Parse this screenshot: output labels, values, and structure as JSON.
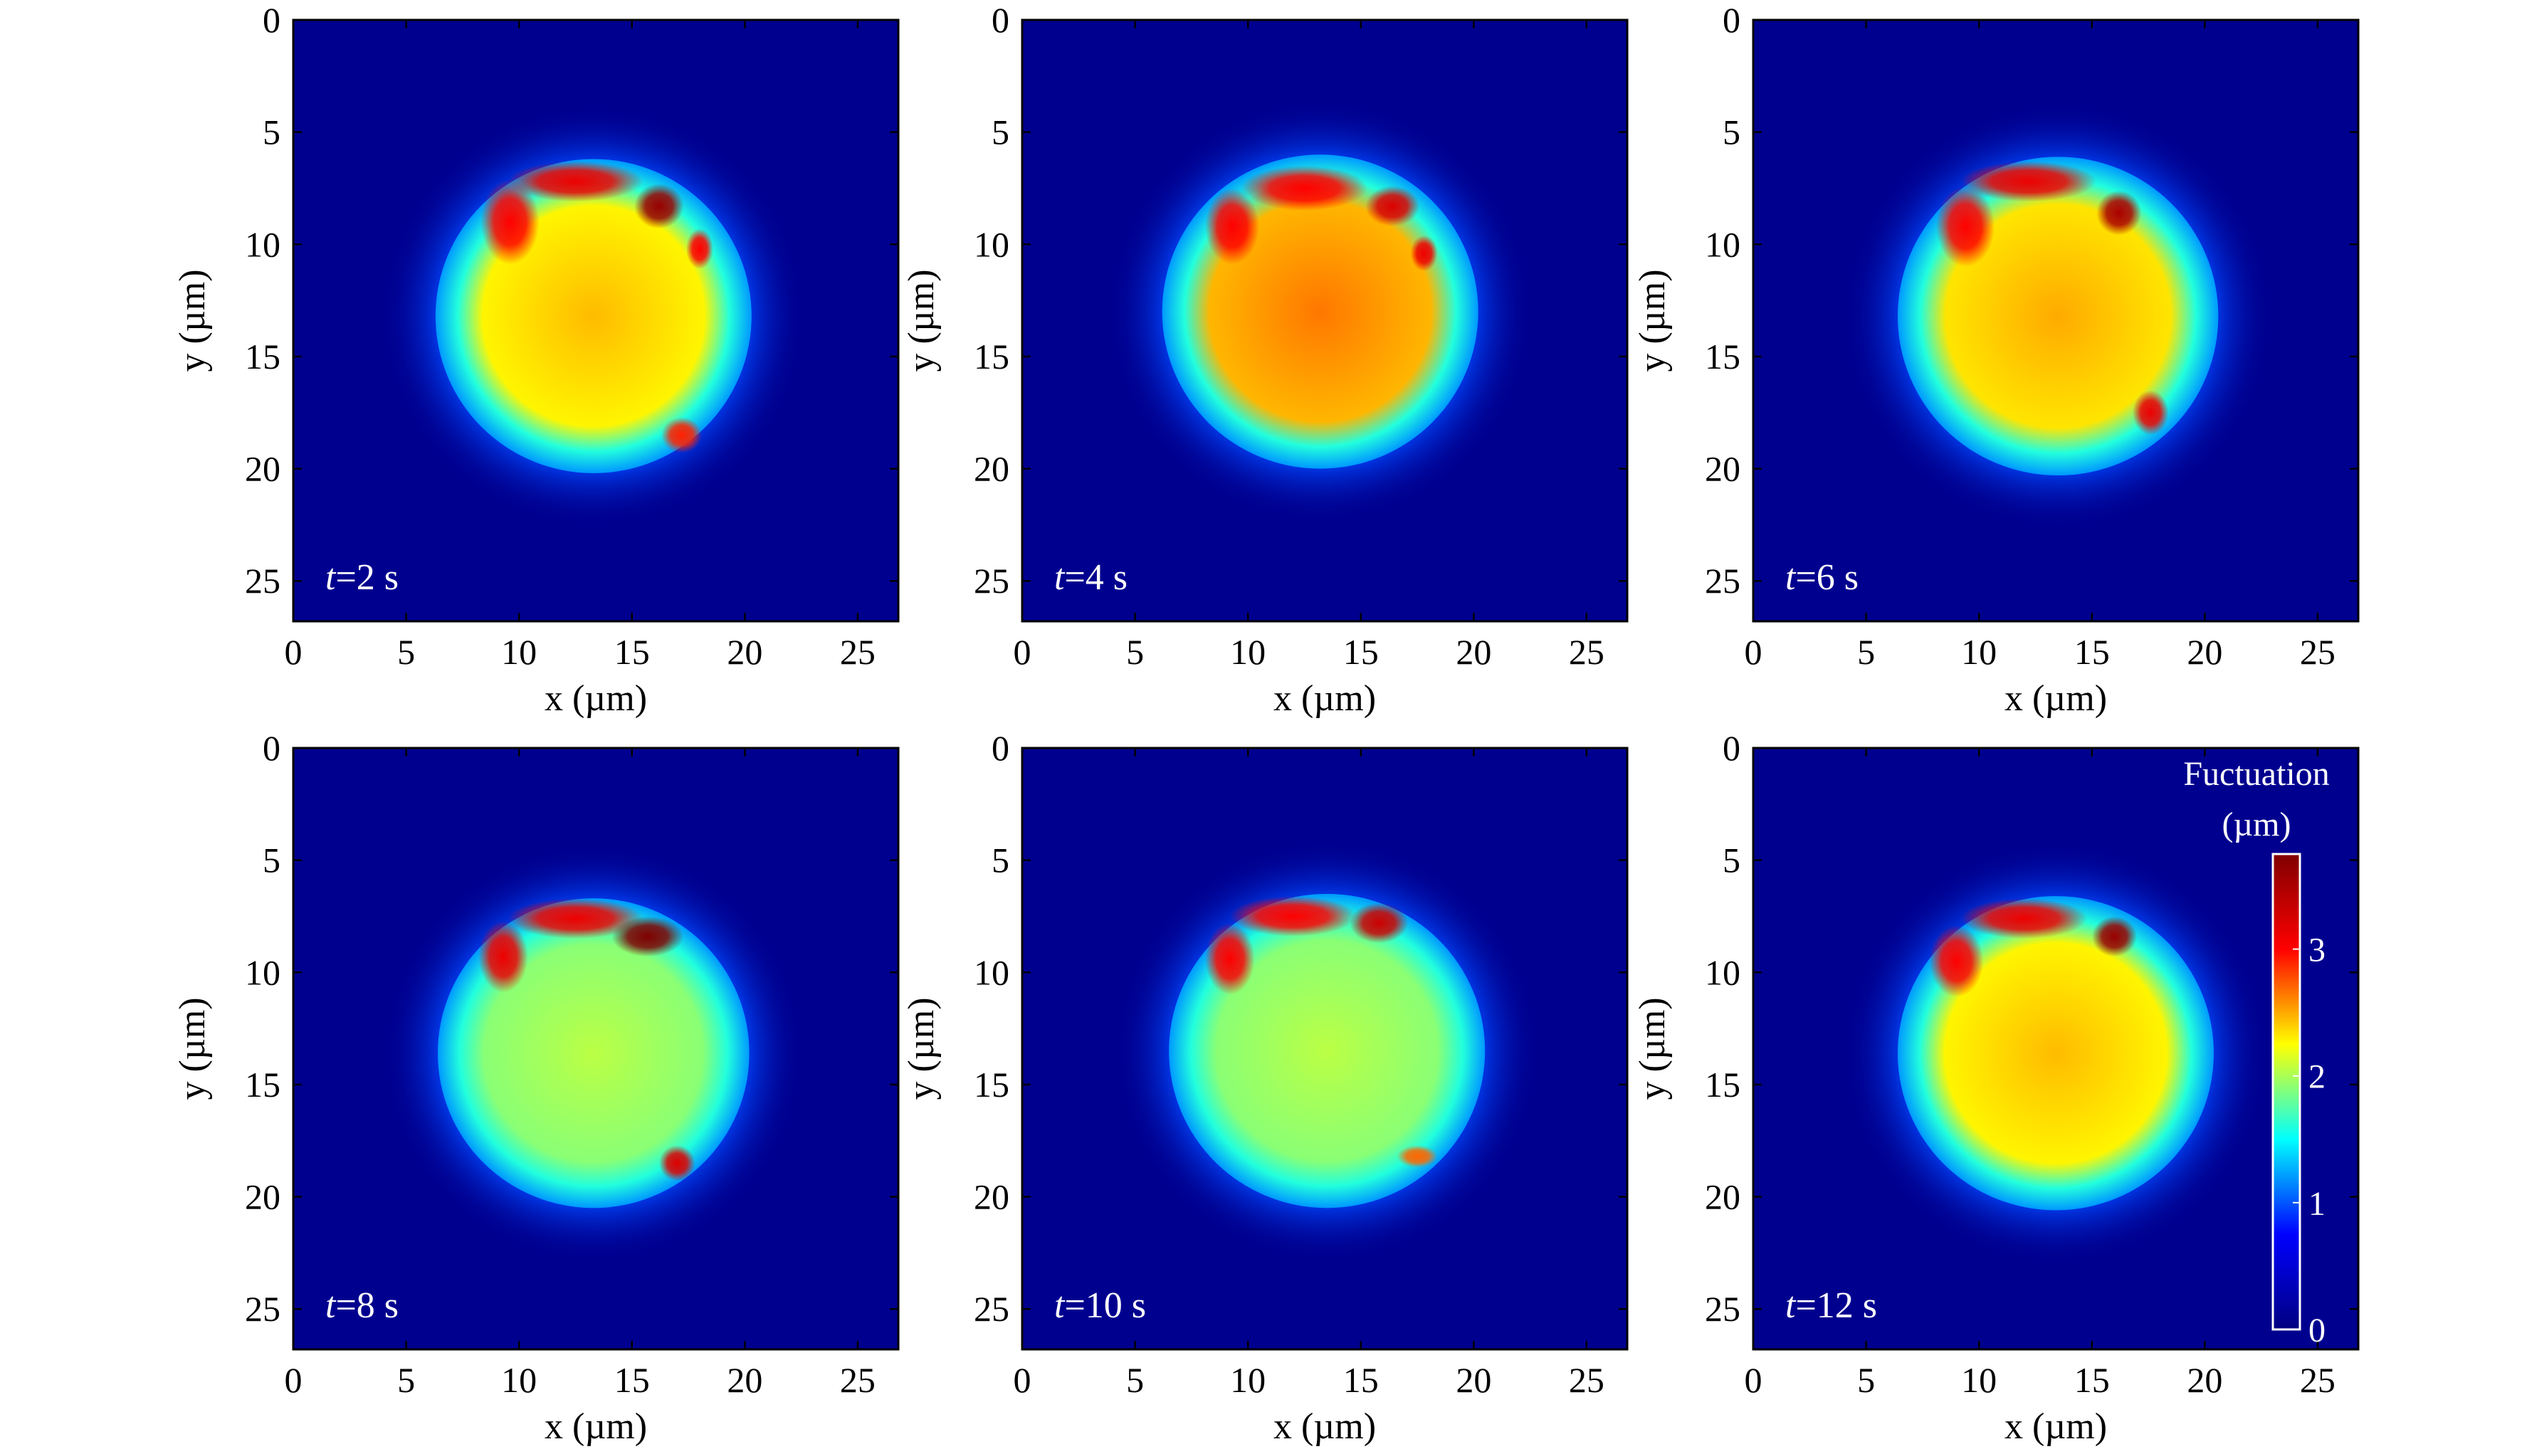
{
  "colors": {
    "background": "#00008f",
    "colormap": [
      "#000080",
      "#0000ff",
      "#00ffff",
      "#ffff00",
      "#ff0000",
      "#800000"
    ]
  },
  "colorbar": {
    "title_line1": "Fuctuation",
    "title_line2": "(µm)",
    "ticks": [
      {
        "value": 0,
        "label": "0"
      },
      {
        "value": 1,
        "label": "1"
      },
      {
        "value": 2,
        "label": "2"
      },
      {
        "value": 3,
        "label": "3"
      }
    ],
    "range": [
      0,
      3.75
    ]
  },
  "chart_data": [
    {
      "type": "heatmap",
      "time_prefix": "t",
      "time_suffix": "=2 s",
      "xlabel": "x (µm)",
      "ylabel": "y (µm)",
      "xticks": [
        0,
        5,
        10,
        15,
        20,
        25
      ],
      "yticks": [
        0,
        5,
        10,
        15,
        20,
        25
      ],
      "xlim": [
        0,
        26.8
      ],
      "ylim": [
        26.8,
        0
      ],
      "blob": {
        "cx": 13.3,
        "cy": 13.2,
        "r": 7.0,
        "center_value": 2.45,
        "rim_value": 1.2
      },
      "hotspots": [
        {
          "x": 12.5,
          "y": 7.2,
          "rx": 3.0,
          "ry": 0.9,
          "value": 3.1
        },
        {
          "x": 16.2,
          "y": 8.3,
          "rx": 1.1,
          "ry": 1.0,
          "value": 3.6
        },
        {
          "x": 9.6,
          "y": 9.0,
          "rx": 1.3,
          "ry": 1.9,
          "value": 3.0
        },
        {
          "x": 17.2,
          "y": 18.5,
          "rx": 0.9,
          "ry": 0.8,
          "value": 2.9
        },
        {
          "x": 18.0,
          "y": 10.2,
          "rx": 0.6,
          "ry": 0.9,
          "value": 3.0
        }
      ]
    },
    {
      "type": "heatmap",
      "time_prefix": "t",
      "time_suffix": "=4 s",
      "xlabel": "x (µm)",
      "ylabel": "y (µm)",
      "xticks": [
        0,
        5,
        10,
        15,
        20,
        25
      ],
      "yticks": [
        0,
        5,
        10,
        15,
        20,
        25
      ],
      "xlim": [
        0,
        26.8
      ],
      "ylim": [
        26.8,
        0
      ],
      "blob": {
        "cx": 13.2,
        "cy": 13.0,
        "r": 7.0,
        "center_value": 2.65,
        "rim_value": 1.2
      },
      "hotspots": [
        {
          "x": 12.5,
          "y": 7.5,
          "rx": 2.8,
          "ry": 1.0,
          "value": 3.0
        },
        {
          "x": 16.4,
          "y": 8.3,
          "rx": 1.2,
          "ry": 0.9,
          "value": 3.2
        },
        {
          "x": 9.3,
          "y": 9.2,
          "rx": 1.2,
          "ry": 1.7,
          "value": 3.0
        },
        {
          "x": 17.8,
          "y": 10.4,
          "rx": 0.6,
          "ry": 0.8,
          "value": 3.1
        }
      ]
    },
    {
      "type": "heatmap",
      "time_prefix": "t",
      "time_suffix": "=6 s",
      "xlabel": "x (µm)",
      "ylabel": "y (µm)",
      "xticks": [
        0,
        5,
        10,
        15,
        20,
        25
      ],
      "yticks": [
        0,
        5,
        10,
        15,
        20,
        25
      ],
      "xlim": [
        0,
        26.8
      ],
      "ylim": [
        26.8,
        0
      ],
      "blob": {
        "cx": 13.5,
        "cy": 13.2,
        "r": 7.1,
        "center_value": 2.5,
        "rim_value": 1.2
      },
      "hotspots": [
        {
          "x": 12.2,
          "y": 7.2,
          "rx": 3.0,
          "ry": 0.9,
          "value": 3.1
        },
        {
          "x": 16.2,
          "y": 8.6,
          "rx": 1.0,
          "ry": 1.0,
          "value": 3.5
        },
        {
          "x": 9.4,
          "y": 9.2,
          "rx": 1.3,
          "ry": 1.8,
          "value": 3.0
        },
        {
          "x": 17.6,
          "y": 17.5,
          "rx": 0.8,
          "ry": 1.0,
          "value": 3.1
        }
      ]
    },
    {
      "type": "heatmap",
      "time_prefix": "t",
      "time_suffix": "=8 s",
      "xlabel": "x (µm)",
      "ylabel": "y (µm)",
      "xticks": [
        0,
        5,
        10,
        15,
        20,
        25
      ],
      "yticks": [
        0,
        5,
        10,
        15,
        20,
        25
      ],
      "xlim": [
        0,
        26.8
      ],
      "ylim": [
        26.8,
        0
      ],
      "blob": {
        "cx": 13.3,
        "cy": 13.6,
        "r": 6.9,
        "center_value": 2.05,
        "rim_value": 1.2
      },
      "hotspots": [
        {
          "x": 12.5,
          "y": 7.6,
          "rx": 3.0,
          "ry": 0.9,
          "value": 3.1
        },
        {
          "x": 15.7,
          "y": 8.4,
          "rx": 1.6,
          "ry": 0.9,
          "value": 3.8
        },
        {
          "x": 9.3,
          "y": 9.3,
          "rx": 1.1,
          "ry": 1.6,
          "value": 3.1
        },
        {
          "x": 17.0,
          "y": 18.5,
          "rx": 0.8,
          "ry": 0.8,
          "value": 3.2
        }
      ]
    },
    {
      "type": "heatmap",
      "time_prefix": "t",
      "time_suffix": "=10 s",
      "xlabel": "x (µm)",
      "ylabel": "y (µm)",
      "xticks": [
        0,
        5,
        10,
        15,
        20,
        25
      ],
      "yticks": [
        0,
        5,
        10,
        15,
        20,
        25
      ],
      "xlim": [
        0,
        26.8
      ],
      "ylim": [
        26.8,
        0
      ],
      "blob": {
        "cx": 13.5,
        "cy": 13.5,
        "r": 7.0,
        "center_value": 2.05,
        "rim_value": 1.2
      },
      "hotspots": [
        {
          "x": 12.0,
          "y": 7.5,
          "rx": 2.8,
          "ry": 0.9,
          "value": 3.0
        },
        {
          "x": 15.8,
          "y": 7.8,
          "rx": 1.3,
          "ry": 0.9,
          "value": 3.3
        },
        {
          "x": 9.2,
          "y": 9.4,
          "rx": 1.1,
          "ry": 1.6,
          "value": 3.0
        },
        {
          "x": 17.5,
          "y": 18.2,
          "rx": 0.9,
          "ry": 0.5,
          "value": 2.7
        }
      ]
    },
    {
      "type": "heatmap",
      "time_prefix": "t",
      "time_suffix": "=12 s",
      "xlabel": "x (µm)",
      "ylabel": "y (µm)",
      "xticks": [
        0,
        5,
        10,
        15,
        20,
        25
      ],
      "yticks": [
        0,
        5,
        10,
        15,
        20,
        25
      ],
      "xlim": [
        0,
        26.8
      ],
      "ylim": [
        26.8,
        0
      ],
      "blob": {
        "cx": 13.4,
        "cy": 13.6,
        "r": 7.0,
        "center_value": 2.45,
        "rim_value": 1.2
      },
      "hotspots": [
        {
          "x": 12.0,
          "y": 7.6,
          "rx": 2.8,
          "ry": 0.9,
          "value": 3.1
        },
        {
          "x": 16.0,
          "y": 8.4,
          "rx": 1.0,
          "ry": 0.9,
          "value": 3.6
        },
        {
          "x": 9.0,
          "y": 9.5,
          "rx": 1.2,
          "ry": 1.6,
          "value": 3.0
        }
      ]
    }
  ]
}
